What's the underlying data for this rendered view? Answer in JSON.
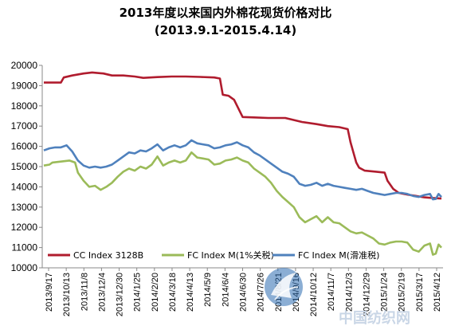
{
  "chart_data": {
    "type": "line",
    "title": "2013年度以来国内外棉花现货价格对比",
    "subtitle": "(2013.9.1-2015.4.14)",
    "ylim": [
      10000,
      20000
    ],
    "yticks": [
      10000,
      11000,
      12000,
      13000,
      14000,
      15000,
      16000,
      17000,
      18000,
      19000,
      20000
    ],
    "categories": [
      "2013/9/17",
      "2013/10/13",
      "2013/11/8",
      "2013/12/4",
      "2013/12/30",
      "2014/1/25",
      "2014/2/20",
      "2014/3/18",
      "2014/4/13",
      "2014/5/9",
      "2014/6/4",
      "2014/6/30",
      "2014/7/26",
      "2014/8/21",
      "2014/9/16",
      "2014/10/12",
      "2014/11/7",
      "2014/12/3",
      "2014/12/29",
      "2015/1/24",
      "2015/2/19",
      "2015/3/17",
      "2015/4/12"
    ],
    "x_count": 141,
    "grid": false,
    "legend_position": "bottom",
    "series": [
      {
        "name": "CC Index 3128B",
        "color": "#b01c2e",
        "points": [
          [
            0,
            19150
          ],
          [
            6,
            19150
          ],
          [
            7,
            19400
          ],
          [
            10,
            19500
          ],
          [
            14,
            19600
          ],
          [
            17,
            19650
          ],
          [
            21,
            19600
          ],
          [
            24,
            19500
          ],
          [
            28,
            19500
          ],
          [
            32,
            19450
          ],
          [
            35,
            19380
          ],
          [
            40,
            19420
          ],
          [
            45,
            19450
          ],
          [
            50,
            19450
          ],
          [
            55,
            19430
          ],
          [
            60,
            19400
          ],
          [
            62,
            19350
          ],
          [
            63,
            18550
          ],
          [
            65,
            18500
          ],
          [
            67,
            18300
          ],
          [
            70,
            17450
          ],
          [
            74,
            17430
          ],
          [
            79,
            17400
          ],
          [
            85,
            17400
          ],
          [
            91,
            17200
          ],
          [
            96,
            17100
          ],
          [
            100,
            17000
          ],
          [
            104,
            16950
          ],
          [
            107,
            16850
          ],
          [
            108,
            16200
          ],
          [
            109,
            15700
          ],
          [
            110,
            15200
          ],
          [
            111,
            14950
          ],
          [
            113,
            14800
          ],
          [
            117,
            14750
          ],
          [
            120,
            14700
          ],
          [
            121,
            14300
          ],
          [
            123,
            13900
          ],
          [
            125,
            13700
          ],
          [
            128,
            13620
          ],
          [
            131,
            13550
          ],
          [
            134,
            13480
          ],
          [
            137,
            13450
          ],
          [
            140,
            13420
          ]
        ]
      },
      {
        "name": "FC Index M(1%关税)",
        "color": "#9bbb59",
        "points": [
          [
            0,
            15050
          ],
          [
            2,
            15100
          ],
          [
            3,
            15200
          ],
          [
            6,
            15250
          ],
          [
            9,
            15300
          ],
          [
            11,
            15200
          ],
          [
            12,
            14700
          ],
          [
            14,
            14300
          ],
          [
            16,
            14000
          ],
          [
            18,
            14050
          ],
          [
            20,
            13850
          ],
          [
            22,
            14000
          ],
          [
            24,
            14200
          ],
          [
            26,
            14500
          ],
          [
            28,
            14750
          ],
          [
            30,
            14900
          ],
          [
            32,
            14800
          ],
          [
            34,
            15000
          ],
          [
            36,
            14900
          ],
          [
            38,
            15100
          ],
          [
            40,
            15500
          ],
          [
            42,
            15050
          ],
          [
            44,
            15200
          ],
          [
            46,
            15300
          ],
          [
            48,
            15200
          ],
          [
            50,
            15300
          ],
          [
            52,
            15700
          ],
          [
            54,
            15450
          ],
          [
            56,
            15400
          ],
          [
            58,
            15350
          ],
          [
            60,
            15100
          ],
          [
            62,
            15150
          ],
          [
            64,
            15300
          ],
          [
            66,
            15350
          ],
          [
            68,
            15450
          ],
          [
            70,
            15300
          ],
          [
            72,
            15200
          ],
          [
            74,
            14900
          ],
          [
            76,
            14700
          ],
          [
            78,
            14500
          ],
          [
            80,
            14200
          ],
          [
            82,
            13800
          ],
          [
            84,
            13500
          ],
          [
            86,
            13250
          ],
          [
            88,
            13000
          ],
          [
            90,
            12500
          ],
          [
            92,
            12250
          ],
          [
            94,
            12400
          ],
          [
            96,
            12550
          ],
          [
            98,
            12250
          ],
          [
            100,
            12500
          ],
          [
            102,
            12250
          ],
          [
            104,
            12200
          ],
          [
            106,
            12000
          ],
          [
            108,
            11800
          ],
          [
            110,
            11700
          ],
          [
            112,
            11750
          ],
          [
            114,
            11600
          ],
          [
            116,
            11450
          ],
          [
            118,
            11200
          ],
          [
            120,
            11150
          ],
          [
            122,
            11250
          ],
          [
            124,
            11300
          ],
          [
            126,
            11300
          ],
          [
            128,
            11250
          ],
          [
            130,
            10900
          ],
          [
            132,
            10800
          ],
          [
            134,
            11100
          ],
          [
            136,
            11200
          ],
          [
            137,
            10650
          ],
          [
            138,
            10700
          ],
          [
            139,
            11150
          ],
          [
            140,
            11000
          ]
        ]
      },
      {
        "name": "FC Index M(滑准税)",
        "color": "#4f81bd",
        "points": [
          [
            0,
            15800
          ],
          [
            2,
            15900
          ],
          [
            4,
            15950
          ],
          [
            6,
            15950
          ],
          [
            8,
            16050
          ],
          [
            10,
            15750
          ],
          [
            12,
            15300
          ],
          [
            14,
            15050
          ],
          [
            16,
            14950
          ],
          [
            18,
            15000
          ],
          [
            20,
            14950
          ],
          [
            22,
            15000
          ],
          [
            24,
            15100
          ],
          [
            26,
            15300
          ],
          [
            28,
            15500
          ],
          [
            30,
            15700
          ],
          [
            32,
            15650
          ],
          [
            34,
            15800
          ],
          [
            36,
            15750
          ],
          [
            38,
            15900
          ],
          [
            40,
            16100
          ],
          [
            42,
            15800
          ],
          [
            44,
            15950
          ],
          [
            46,
            16050
          ],
          [
            48,
            15950
          ],
          [
            50,
            16050
          ],
          [
            52,
            16300
          ],
          [
            54,
            16150
          ],
          [
            56,
            16100
          ],
          [
            58,
            16050
          ],
          [
            60,
            15900
          ],
          [
            62,
            15950
          ],
          [
            64,
            16050
          ],
          [
            66,
            16100
          ],
          [
            68,
            16200
          ],
          [
            70,
            16050
          ],
          [
            72,
            15950
          ],
          [
            74,
            15700
          ],
          [
            76,
            15550
          ],
          [
            78,
            15350
          ],
          [
            80,
            15150
          ],
          [
            82,
            14950
          ],
          [
            84,
            14750
          ],
          [
            86,
            14650
          ],
          [
            88,
            14500
          ],
          [
            90,
            14150
          ],
          [
            92,
            14050
          ],
          [
            94,
            14100
          ],
          [
            96,
            14200
          ],
          [
            98,
            14050
          ],
          [
            100,
            14150
          ],
          [
            102,
            14050
          ],
          [
            104,
            14000
          ],
          [
            106,
            13950
          ],
          [
            108,
            13900
          ],
          [
            110,
            13850
          ],
          [
            112,
            13900
          ],
          [
            114,
            13800
          ],
          [
            116,
            13700
          ],
          [
            118,
            13650
          ],
          [
            120,
            13600
          ],
          [
            122,
            13650
          ],
          [
            124,
            13700
          ],
          [
            126,
            13700
          ],
          [
            128,
            13650
          ],
          [
            130,
            13550
          ],
          [
            132,
            13500
          ],
          [
            134,
            13600
          ],
          [
            136,
            13650
          ],
          [
            137,
            13380
          ],
          [
            138,
            13400
          ],
          [
            139,
            13650
          ],
          [
            140,
            13500
          ]
        ]
      }
    ]
  },
  "watermark": {
    "text": "中国纺织网"
  }
}
